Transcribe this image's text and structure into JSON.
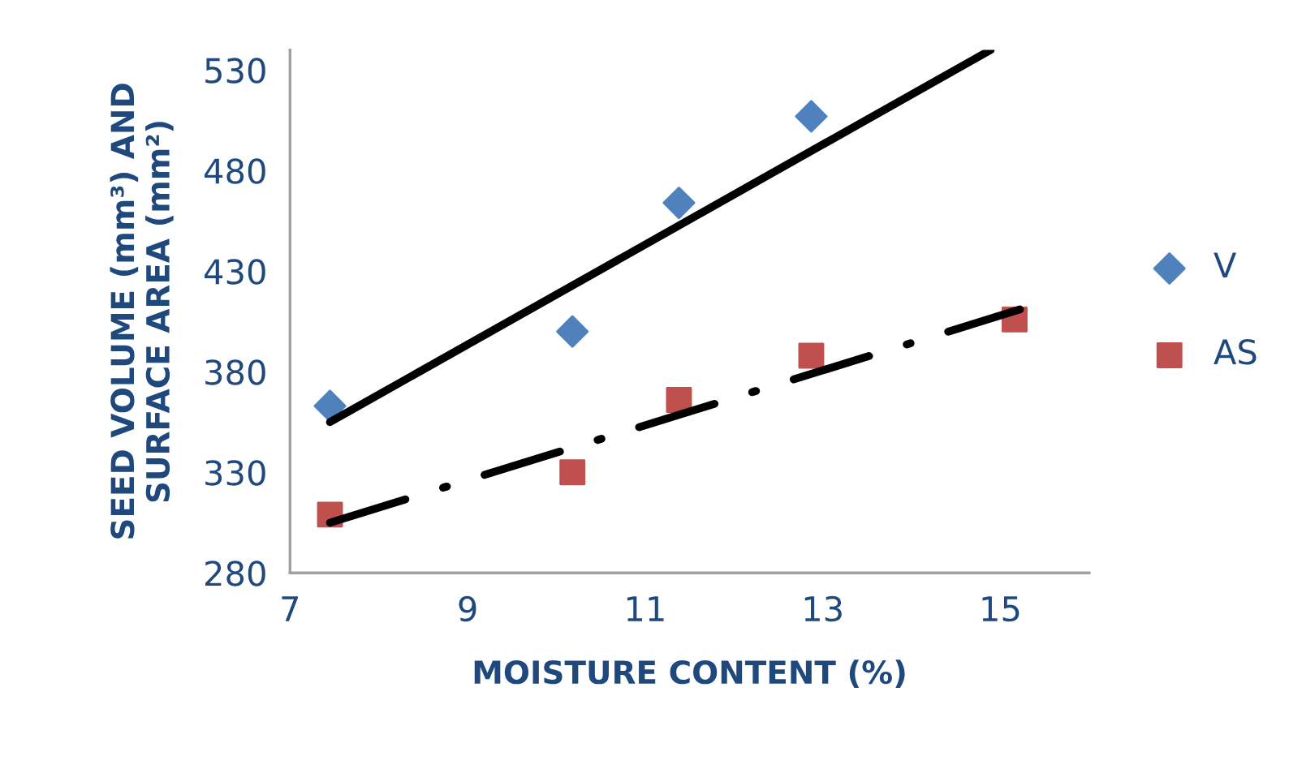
{
  "chart_data": {
    "type": "scatter",
    "xlabel": "MOISTURE CONTENT (%)",
    "ylabel": "SEED VOLUME (mm³) AND SURFACE AREA (mm²)",
    "x": [
      7.45,
      10.18,
      11.38,
      12.87,
      15.16
    ],
    "series": [
      {
        "name": "V",
        "color": "#4f81bd",
        "marker": "diamond",
        "x": [
          7.45,
          10.18,
          11.38,
          12.87
        ],
        "values": [
          363,
          400,
          464,
          507
        ]
      },
      {
        "name": "AS",
        "color": "#c0504d",
        "marker": "square",
        "values": [
          309,
          330,
          366,
          388,
          406
        ]
      },
      {
        "type": "line",
        "color": "#000000",
        "line_style": "solid",
        "x": [
          7.45,
          14.89
        ],
        "values": [
          355,
          540
        ]
      },
      {
        "type": "line",
        "color": "#000000",
        "line_style": "dashdot",
        "x": [
          7.45,
          15.22
        ],
        "values": [
          305,
          411
        ]
      }
    ],
    "xlim": [
      7,
      16
    ],
    "xticks": [
      7,
      9,
      11,
      13,
      15
    ],
    "ylim": [
      280,
      540
    ],
    "yticks": [
      280,
      330,
      380,
      430,
      480,
      530
    ],
    "grid": false,
    "legend": "right"
  }
}
